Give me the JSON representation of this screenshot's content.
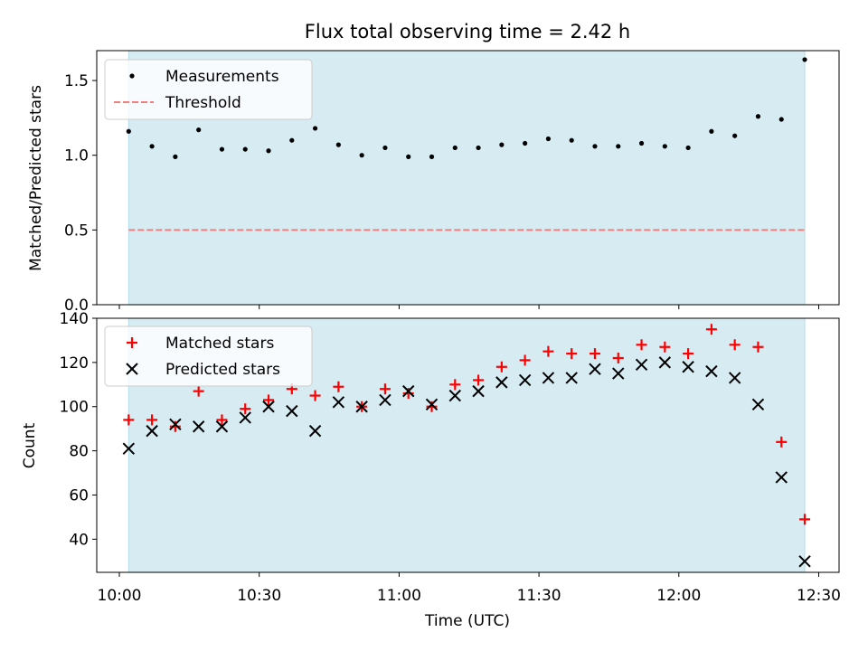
{
  "chart_data": [
    {
      "type": "scatter",
      "title": "Flux total observing time = 2.42 h",
      "xlabel": "",
      "ylabel": "Matched/Predicted stars",
      "ylim": [
        0,
        1.7
      ],
      "yticks": [
        "0.0",
        "0.5",
        "1.0",
        "1.5"
      ],
      "shaded_region": {
        "x_start": "10:02",
        "x_end": "12:27",
        "color": "#add8e6"
      },
      "x": [
        "10:02",
        "10:07",
        "10:12",
        "10:17",
        "10:22",
        "10:27",
        "10:32",
        "10:37",
        "10:42",
        "10:47",
        "10:52",
        "10:57",
        "11:02",
        "11:07",
        "11:12",
        "11:17",
        "11:22",
        "11:27",
        "11:32",
        "11:37",
        "11:42",
        "11:47",
        "11:52",
        "11:57",
        "12:02",
        "12:07",
        "12:12",
        "12:17",
        "12:22",
        "12:27"
      ],
      "series": [
        {
          "name": "Measurements",
          "color": "#000000",
          "marker": "dot",
          "values": [
            1.16,
            1.06,
            0.99,
            1.17,
            1.04,
            1.04,
            1.03,
            1.1,
            1.18,
            1.07,
            1.0,
            1.05,
            0.99,
            0.99,
            1.05,
            1.05,
            1.07,
            1.08,
            1.11,
            1.1,
            1.06,
            1.06,
            1.08,
            1.06,
            1.05,
            1.16,
            1.13,
            1.26,
            1.24,
            1.64
          ]
        }
      ],
      "threshold": {
        "name": "Threshold",
        "value": 0.5,
        "color": "#f08080",
        "style": "dashed"
      },
      "legend": "top-left"
    },
    {
      "type": "scatter",
      "title": "",
      "xlabel": "Time (UTC)",
      "ylabel": "Count",
      "ylim": [
        25,
        140
      ],
      "yticks": [
        "40",
        "60",
        "80",
        "100",
        "120",
        "140"
      ],
      "xticks": [
        "10:00",
        "10:30",
        "11:00",
        "11:30",
        "12:00",
        "12:30"
      ],
      "shaded_region": {
        "x_start": "10:02",
        "x_end": "12:27",
        "color": "#add8e6"
      },
      "x": [
        "10:02",
        "10:07",
        "10:12",
        "10:17",
        "10:22",
        "10:27",
        "10:32",
        "10:37",
        "10:42",
        "10:47",
        "10:52",
        "10:57",
        "11:02",
        "11:07",
        "11:12",
        "11:17",
        "11:22",
        "11:27",
        "11:32",
        "11:37",
        "11:42",
        "11:47",
        "11:52",
        "11:57",
        "12:02",
        "12:07",
        "12:12",
        "12:17",
        "12:22",
        "12:27"
      ],
      "series": [
        {
          "name": "Matched stars",
          "color": "#ff0000",
          "marker": "plus",
          "values": [
            94,
            94,
            91,
            107,
            94,
            99,
            103,
            108,
            105,
            109,
            100,
            108,
            106,
            100,
            110,
            112,
            118,
            121,
            125,
            124,
            124,
            122,
            128,
            127,
            124,
            135,
            128,
            127,
            84,
            49
          ]
        },
        {
          "name": "Predicted stars",
          "color": "#000000",
          "marker": "x",
          "values": [
            81,
            89,
            92,
            91,
            91,
            95,
            100,
            98,
            89,
            102,
            100,
            103,
            107,
            101,
            105,
            107,
            111,
            112,
            113,
            113,
            117,
            115,
            119,
            120,
            118,
            116,
            113,
            101,
            68,
            30
          ]
        }
      ],
      "legend": "top-left"
    }
  ]
}
